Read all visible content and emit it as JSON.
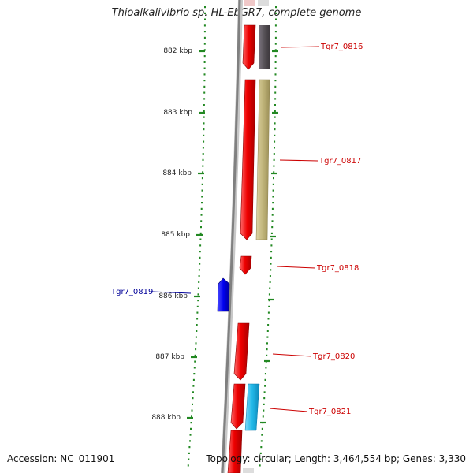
{
  "title": "Thioalkalivibrio sp. HL-EbGR7, complete genome",
  "footer": {
    "accession": "Accession: NC_011901",
    "summary": "Topology: circular; Length: 3,464,554 bp; Genes: 3,330"
  },
  "scale": {
    "ticks": [
      "882 kbp",
      "883 kbp",
      "884 kbp",
      "885 kbp",
      "886 kbp",
      "887 kbp",
      "888 kbp"
    ]
  },
  "genes": [
    {
      "name": "Tgr7_0816",
      "color": "#cc0000"
    },
    {
      "name": "Tgr7_0817",
      "color": "#cc0000"
    },
    {
      "name": "Tgr7_0818",
      "color": "#cc0000"
    },
    {
      "name": "Tgr7_0819",
      "color": "#000099"
    },
    {
      "name": "Tgr7_0820",
      "color": "#cc0000"
    },
    {
      "name": "Tgr7_0821",
      "color": "#cc0000"
    }
  ],
  "colors": {
    "forward_cds": "#ee0000",
    "reverse_cds": "#0000ee",
    "cog_grey": "#555055",
    "cog_khaki": "#c0b47a",
    "cog_cyan": "#22b8e8",
    "backbone": "#808080",
    "tick_green": "#228822"
  }
}
